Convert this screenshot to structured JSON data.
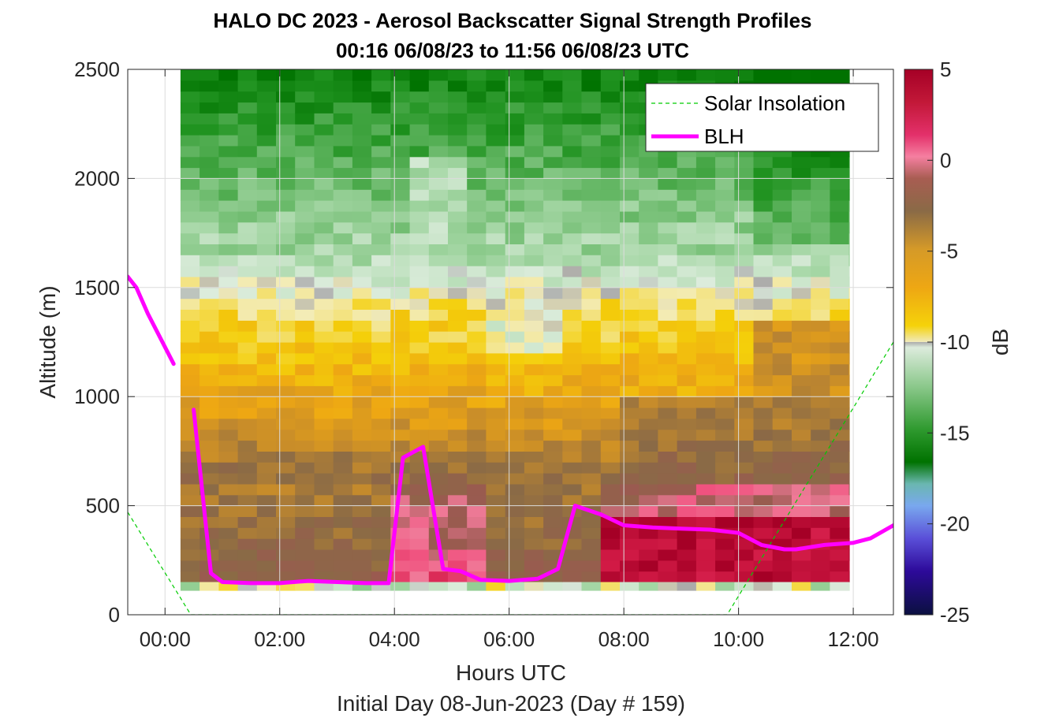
{
  "chart_data": {
    "type": "heatmap",
    "title": "HALO DC 2023 - Aerosol Backscatter Signal Strength Profiles",
    "subtitle": "00:16 06/08/23 to 11:56 06/08/23  UTC",
    "xlabel": "Hours UTC",
    "xlabel2": "Initial Day 08-Jun-2023 (Day # 159)",
    "ylabel": "Altitude (m)",
    "colorbar_label": "dB",
    "x_ticks": [
      0,
      2,
      4,
      6,
      8,
      10,
      12
    ],
    "x_tick_labels": [
      "00:00",
      "02:00",
      "04:00",
      "06:00",
      "08:00",
      "10:00",
      "12:00"
    ],
    "xlim": [
      -0.65,
      12.7
    ],
    "y_ticks": [
      0,
      500,
      1000,
      1500,
      2000,
      2500
    ],
    "y_tick_labels": [
      "0",
      "500",
      "1000",
      "1500",
      "2000",
      "2500"
    ],
    "ylim": [
      0,
      2500
    ],
    "colorbar_ticks": [
      5,
      0,
      -5,
      -10,
      -15,
      -20,
      -25
    ],
    "colorbar_tick_labels": [
      "5",
      "0",
      "-5",
      "-10",
      "-15",
      "-20",
      "-25"
    ],
    "clim": [
      -25,
      5
    ],
    "grid": true,
    "legend_position": "top-right",
    "legend": [
      {
        "label": "Solar Insolation",
        "color": "#00cc00",
        "style": "dashed"
      },
      {
        "label": "BLH",
        "color": "#ff00ff",
        "style": "solid"
      }
    ],
    "heatmap": {
      "x_range": [
        0.27,
        11.93
      ],
      "y_range": [
        150,
        2500
      ],
      "x_step_hours": 0.333,
      "y_step_m": 50,
      "description": "Backscatter: high (0 to 5 dB) below 500 m after 07:30, moderate (-3 to -8 dB) in 500-1400 m layer, low (-12 to -17 dB) above 1600 m"
    },
    "series": [
      {
        "name": "BLH",
        "color": "#ff00ff",
        "segments": [
          [
            [
              -0.65,
              1550
            ],
            [
              -0.5,
              1500
            ],
            [
              -0.3,
              1380
            ],
            [
              0.15,
              1150
            ]
          ],
          [
            [
              0.5,
              940
            ],
            [
              0.8,
              190
            ],
            [
              1.0,
              150
            ],
            [
              1.5,
              145
            ],
            [
              2.0,
              145
            ],
            [
              2.5,
              155
            ],
            [
              3.0,
              150
            ],
            [
              3.5,
              145
            ],
            [
              3.9,
              145
            ],
            [
              4.15,
              720
            ],
            [
              4.5,
              770
            ],
            [
              4.85,
              210
            ],
            [
              5.15,
              200
            ],
            [
              5.5,
              160
            ],
            [
              6.0,
              155
            ],
            [
              6.5,
              165
            ],
            [
              6.85,
              210
            ],
            [
              7.15,
              500
            ],
            [
              7.6,
              460
            ],
            [
              8.0,
              410
            ],
            [
              8.5,
              400
            ],
            [
              9.0,
              395
            ],
            [
              9.5,
              390
            ],
            [
              10.0,
              375
            ],
            [
              10.4,
              320
            ],
            [
              10.8,
              300
            ],
            [
              11.0,
              300
            ],
            [
              11.5,
              320
            ],
            [
              12.0,
              330
            ],
            [
              12.3,
              350
            ],
            [
              12.7,
              410
            ]
          ]
        ]
      },
      {
        "name": "Solar Insolation",
        "color": "#00cc00",
        "points": [
          [
            -0.65,
            470
          ],
          [
            0.45,
            0
          ],
          [
            9.8,
            0
          ],
          [
            12.7,
            1250
          ]
        ]
      }
    ]
  }
}
